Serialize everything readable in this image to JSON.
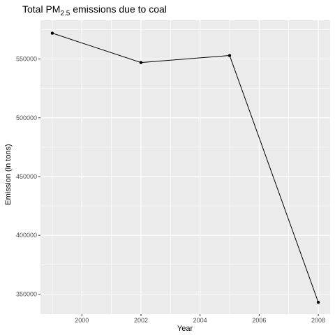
{
  "chart_data": {
    "type": "line",
    "title": {
      "before": "Total PM",
      "subscript": "2.5",
      "after": " emissions due to coal"
    },
    "xlabel": "Year",
    "ylabel": "Emission (in tons)",
    "x_ticks": [
      "2000",
      "2002",
      "2004",
      "2006",
      "2008"
    ],
    "y_ticks": [
      "350000",
      "400000",
      "450000",
      "500000",
      "550000"
    ],
    "xlim": [
      1998.6,
      2008.4
    ],
    "ylim": [
      333000,
      583000
    ],
    "grid": true,
    "legend": "none",
    "colors": {
      "panel": "#ebebeb",
      "grid_major": "#ffffff",
      "line": "#000000",
      "point": "#000000"
    },
    "series": [
      {
        "x": [
          1999,
          2002,
          2005,
          2008
        ],
        "y": [
          572000,
          547000,
          553000,
          343000
        ]
      }
    ]
  }
}
